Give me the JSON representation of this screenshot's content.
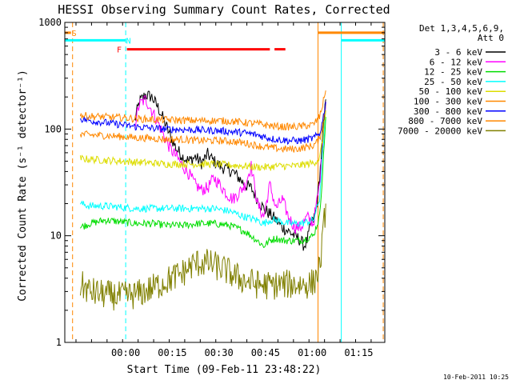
{
  "chart_data": {
    "type": "line",
    "title": "HESSI Observing Summary Count Rates, Corrected",
    "xlabel": "Start Time (09-Feb-11 23:48:22)",
    "ylabel": "Corrected Count Rate (s⁻¹ detector⁻¹)",
    "yscale": "log",
    "ylim": [
      1,
      1000
    ],
    "xlim_minutes": [
      -8,
      95
    ],
    "x_ticks": [
      {
        "label": "00:00",
        "minutes": 11.6
      },
      {
        "label": "00:15",
        "minutes": 26.6
      },
      {
        "label": "00:30",
        "minutes": 41.6
      },
      {
        "label": "00:45",
        "minutes": 56.6
      },
      {
        "label": "01:00",
        "minutes": 71.6
      },
      {
        "label": "01:15",
        "minutes": 86.6
      }
    ],
    "y_ticks": [
      {
        "label": "1",
        "value": 1
      },
      {
        "label": "10",
        "value": 10
      },
      {
        "label": "100",
        "value": 100
      },
      {
        "label": "1000",
        "value": 1000
      }
    ],
    "legend_header": [
      "Det 1,3,4,5,6,9,",
      "Att 0"
    ],
    "legend_position": "right",
    "footer_date": "10-Feb-2011 10:25",
    "series": [
      {
        "name": "3 - 6 keV",
        "color": "#000000",
        "points": [
          [
            14.5,
            120
          ],
          [
            16,
            180
          ],
          [
            18,
            210
          ],
          [
            20,
            200
          ],
          [
            22,
            160
          ],
          [
            24,
            120
          ],
          [
            26,
            85
          ],
          [
            28,
            65
          ],
          [
            30,
            55
          ],
          [
            32,
            50
          ],
          [
            34,
            55
          ],
          [
            36,
            48
          ],
          [
            38,
            58
          ],
          [
            40,
            50
          ],
          [
            42,
            45
          ],
          [
            44,
            42
          ],
          [
            46,
            40
          ],
          [
            48,
            35
          ],
          [
            50,
            30
          ],
          [
            52,
            28
          ],
          [
            54,
            22
          ],
          [
            56,
            18
          ],
          [
            58,
            16
          ],
          [
            60,
            14
          ],
          [
            62,
            12
          ],
          [
            64,
            11
          ],
          [
            66,
            10
          ],
          [
            68,
            9
          ],
          [
            69,
            8
          ],
          [
            70,
            9
          ],
          [
            71,
            12
          ],
          [
            72,
            14
          ],
          [
            73,
            18
          ],
          [
            74,
            35
          ],
          [
            75,
            80
          ],
          [
            76,
            190
          ]
        ]
      },
      {
        "name": "6 - 12 keV",
        "color": "#ff00ff",
        "points": [
          [
            14.5,
            110
          ],
          [
            16,
            170
          ],
          [
            18,
            190
          ],
          [
            20,
            150
          ],
          [
            22,
            115
          ],
          [
            24,
            85
          ],
          [
            26,
            65
          ],
          [
            28,
            55
          ],
          [
            30,
            45
          ],
          [
            32,
            38
          ],
          [
            34,
            30
          ],
          [
            36,
            27
          ],
          [
            38,
            28
          ],
          [
            40,
            35
          ],
          [
            42,
            30
          ],
          [
            44,
            25
          ],
          [
            46,
            22
          ],
          [
            48,
            25
          ],
          [
            50,
            30
          ],
          [
            52,
            45
          ],
          [
            54,
            20
          ],
          [
            56,
            15
          ],
          [
            58,
            30
          ],
          [
            60,
            18
          ],
          [
            62,
            22
          ],
          [
            64,
            15
          ],
          [
            66,
            12
          ],
          [
            68,
            12
          ],
          [
            70,
            15
          ],
          [
            72,
            13
          ],
          [
            74,
            30
          ],
          [
            75,
            70
          ],
          [
            76,
            180
          ]
        ]
      },
      {
        "name": "12 - 25 keV",
        "color": "#00dd00",
        "points": [
          [
            -3,
            12
          ],
          [
            0,
            13
          ],
          [
            5,
            14
          ],
          [
            10,
            13.5
          ],
          [
            15,
            13
          ],
          [
            20,
            13
          ],
          [
            25,
            12.5
          ],
          [
            30,
            12.5
          ],
          [
            35,
            13
          ],
          [
            40,
            13
          ],
          [
            45,
            12.5
          ],
          [
            50,
            11
          ],
          [
            54,
            9
          ],
          [
            56,
            8
          ],
          [
            58,
            9
          ],
          [
            60,
            9.5
          ],
          [
            62,
            9
          ],
          [
            64,
            9
          ],
          [
            66,
            9
          ],
          [
            68,
            9
          ],
          [
            70,
            9.5
          ],
          [
            72,
            10
          ],
          [
            74,
            15
          ],
          [
            75,
            40
          ],
          [
            76,
            130
          ]
        ]
      },
      {
        "name": "25 - 50 keV",
        "color": "#00ffff",
        "points": [
          [
            -3,
            20
          ],
          [
            0,
            19
          ],
          [
            5,
            19
          ],
          [
            10,
            18.5
          ],
          [
            15,
            18
          ],
          [
            20,
            18
          ],
          [
            25,
            18
          ],
          [
            30,
            18
          ],
          [
            35,
            18
          ],
          [
            40,
            18
          ],
          [
            45,
            17
          ],
          [
            50,
            15
          ],
          [
            54,
            14
          ],
          [
            56,
            13
          ],
          [
            58,
            14
          ],
          [
            60,
            14
          ],
          [
            62,
            13.5
          ],
          [
            64,
            13
          ],
          [
            66,
            13
          ],
          [
            68,
            13
          ],
          [
            70,
            13.5
          ],
          [
            72,
            14
          ],
          [
            74,
            22
          ],
          [
            75,
            60
          ],
          [
            76,
            150
          ]
        ]
      },
      {
        "name": "50 - 100 keV",
        "color": "#dddd00",
        "points": [
          [
            -3,
            53
          ],
          [
            0,
            52
          ],
          [
            5,
            51
          ],
          [
            10,
            50
          ],
          [
            15,
            49
          ],
          [
            20,
            48
          ],
          [
            25,
            47
          ],
          [
            30,
            47
          ],
          [
            35,
            47
          ],
          [
            40,
            47
          ],
          [
            45,
            46
          ],
          [
            50,
            45
          ],
          [
            54,
            44
          ],
          [
            56,
            44
          ],
          [
            58,
            44
          ],
          [
            60,
            45
          ],
          [
            62,
            45
          ],
          [
            64,
            45
          ],
          [
            66,
            45
          ],
          [
            68,
            46
          ],
          [
            70,
            47
          ],
          [
            72,
            48
          ],
          [
            74,
            53
          ],
          [
            75,
            80
          ],
          [
            76,
            150
          ]
        ]
      },
      {
        "name": "100 - 300 keV",
        "color": "#ff8800",
        "points": [
          [
            -3,
            90
          ],
          [
            0,
            88
          ],
          [
            5,
            87
          ],
          [
            10,
            85
          ],
          [
            15,
            83
          ],
          [
            20,
            82
          ],
          [
            25,
            80
          ],
          [
            30,
            80
          ],
          [
            35,
            78
          ],
          [
            40,
            78
          ],
          [
            45,
            77
          ],
          [
            50,
            74
          ],
          [
            54,
            70
          ],
          [
            56,
            68
          ],
          [
            58,
            67
          ],
          [
            60,
            66
          ],
          [
            62,
            65
          ],
          [
            64,
            65
          ],
          [
            66,
            65
          ],
          [
            68,
            66
          ],
          [
            70,
            68
          ],
          [
            72,
            70
          ],
          [
            74,
            80
          ],
          [
            75,
            110
          ],
          [
            76,
            170
          ]
        ]
      },
      {
        "name": "300 - 800 keV",
        "color": "#0000ff",
        "points": [
          [
            -3,
            125
          ],
          [
            0,
            120
          ],
          [
            5,
            115
          ],
          [
            10,
            110
          ],
          [
            15,
            105
          ],
          [
            20,
            102
          ],
          [
            25,
            100
          ],
          [
            30,
            99
          ],
          [
            35,
            98
          ],
          [
            40,
            97
          ],
          [
            45,
            95
          ],
          [
            50,
            92
          ],
          [
            54,
            88
          ],
          [
            56,
            85
          ],
          [
            58,
            82
          ],
          [
            60,
            80
          ],
          [
            62,
            79
          ],
          [
            64,
            78
          ],
          [
            66,
            78
          ],
          [
            68,
            78
          ],
          [
            70,
            80
          ],
          [
            72,
            82
          ],
          [
            74,
            90
          ],
          [
            75,
            120
          ],
          [
            76,
            180
          ]
        ]
      },
      {
        "name": "800 - 7000 keV",
        "color": "#ff8800",
        "points": [
          [
            -3,
            135
          ],
          [
            0,
            132
          ],
          [
            5,
            130
          ],
          [
            10,
            128
          ],
          [
            15,
            125
          ],
          [
            20,
            123
          ],
          [
            25,
            122
          ],
          [
            30,
            121
          ],
          [
            35,
            120
          ],
          [
            40,
            120
          ],
          [
            45,
            119
          ],
          [
            50,
            115
          ],
          [
            54,
            112
          ],
          [
            56,
            110
          ],
          [
            58,
            108
          ],
          [
            60,
            106
          ],
          [
            62,
            105
          ],
          [
            64,
            105
          ],
          [
            66,
            105
          ],
          [
            68,
            106
          ],
          [
            70,
            108
          ],
          [
            72,
            110
          ],
          [
            74,
            130
          ],
          [
            75,
            170
          ],
          [
            76,
            230
          ]
        ]
      },
      {
        "name": "7000 - 20000 keV",
        "color": "#808000",
        "points": [
          [
            -3,
            3.5
          ],
          [
            0,
            3.0
          ],
          [
            5,
            2.8
          ],
          [
            10,
            2.7
          ],
          [
            15,
            2.8
          ],
          [
            20,
            3.2
          ],
          [
            25,
            3.8
          ],
          [
            30,
            4.5
          ],
          [
            32,
            5.0
          ],
          [
            34,
            5.5
          ],
          [
            36,
            5.6
          ],
          [
            38,
            5.5
          ],
          [
            40,
            5.3
          ],
          [
            42,
            5.0
          ],
          [
            44,
            4.7
          ],
          [
            46,
            4.3
          ],
          [
            48,
            4.0
          ],
          [
            50,
            3.8
          ],
          [
            54,
            3.5
          ],
          [
            58,
            3.4
          ],
          [
            62,
            3.5
          ],
          [
            66,
            3.5
          ],
          [
            70,
            3.5
          ],
          [
            72,
            3.6
          ],
          [
            74,
            5.0
          ],
          [
            75,
            9
          ],
          [
            76,
            20
          ]
        ]
      }
    ],
    "flag_bars": [
      {
        "label": "S",
        "color": "#ff8800",
        "value": 800,
        "segments": [
          [
            -8,
            -6
          ]
        ],
        "label_at": -5
      },
      {
        "label": "N",
        "color": "#00ffff",
        "value": 680,
        "segments": [
          [
            -8,
            11.6
          ]
        ],
        "label_at": 12.5
      },
      {
        "label": "F",
        "color": "#ff0000",
        "value": 560,
        "segments": [
          [
            12,
            58
          ],
          [
            59.5,
            63
          ]
        ],
        "label_at": 9.5
      },
      {
        "label": "",
        "color": "#ff8800",
        "value": 800,
        "segments": [
          [
            73.5,
            95
          ]
        ],
        "label_at": null
      },
      {
        "label": "",
        "color": "#00ffff",
        "value": 680,
        "segments": [
          [
            81,
            95
          ]
        ],
        "label_at": null
      }
    ],
    "vlines": [
      {
        "minutes": -8,
        "color": "#00ffff",
        "style": "solid"
      },
      {
        "minutes": -5.5,
        "color": "#ff8800",
        "style": "dashed"
      },
      {
        "minutes": 11.6,
        "color": "#00ffff",
        "style": "dashed"
      },
      {
        "minutes": 73.5,
        "color": "#ff8800",
        "style": "solid"
      },
      {
        "minutes": 81,
        "color": "#00ffff",
        "style": "solid"
      },
      {
        "minutes": 94.5,
        "color": "#ff8800",
        "style": "dashed"
      }
    ]
  }
}
